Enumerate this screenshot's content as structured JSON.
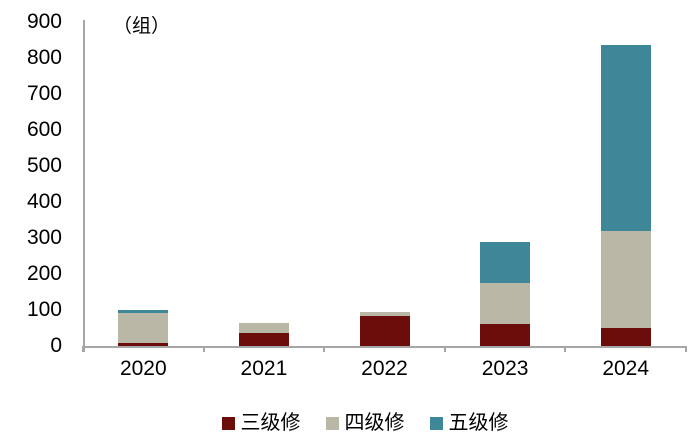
{
  "chart_data": {
    "type": "bar",
    "stacked": true,
    "title": "",
    "ylabel": "（组）",
    "xlabel": "",
    "ylim": [
      0,
      900
    ],
    "yticks": [
      0,
      100,
      200,
      300,
      400,
      500,
      600,
      700,
      800,
      900
    ],
    "grid": false,
    "legend_position": "bottom",
    "categories": [
      "2020",
      "2021",
      "2022",
      "2023",
      "2024"
    ],
    "series": [
      {
        "name": "三级修",
        "color": "#6A0D0B",
        "values": [
          8,
          35,
          82,
          60,
          50
        ]
      },
      {
        "name": "四级修",
        "color": "#B9B7A6",
        "values": [
          84,
          28,
          12,
          116,
          270
        ]
      },
      {
        "name": "五级修",
        "color": "#3E8799",
        "values": [
          8,
          0,
          0,
          112,
          515
        ]
      }
    ],
    "totals": [
      100,
      63,
      94,
      288,
      835
    ]
  },
  "colors": {
    "axis": "#A6A6A6",
    "text": "#000000",
    "background": "#FFFFFF"
  }
}
